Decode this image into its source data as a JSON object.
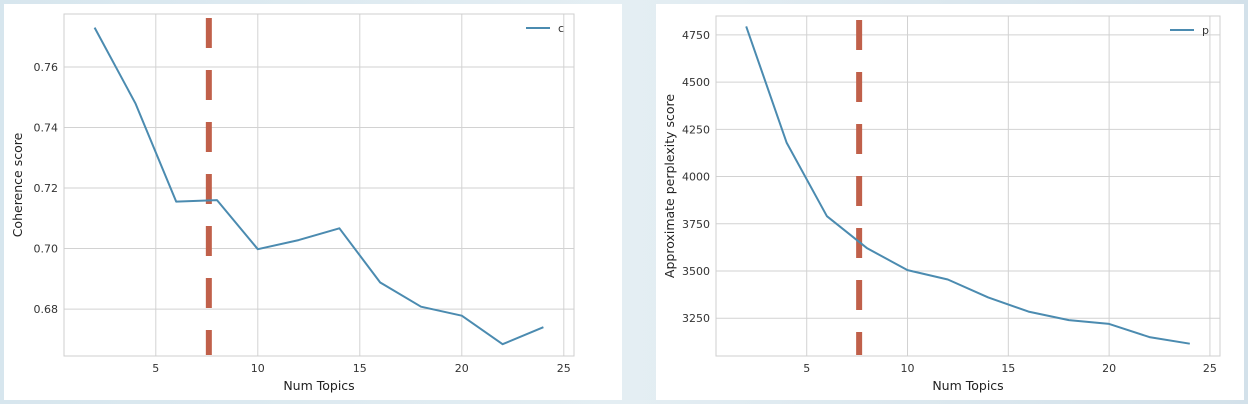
{
  "chart_data": [
    {
      "type": "line",
      "title": "",
      "xlabel": "Num Topics",
      "ylabel": "Coherence score",
      "xlim": [
        0.5,
        25.5
      ],
      "ylim": [
        0.6645,
        0.7775
      ],
      "xticks": [
        5,
        10,
        15,
        20,
        25
      ],
      "yticks": [
        0.68,
        0.7,
        0.72,
        0.74,
        0.76
      ],
      "ytick_labels": [
        "0.68",
        "0.70",
        "0.72",
        "0.74",
        "0.76"
      ],
      "grid": true,
      "legend_position": "top-right",
      "series": [
        {
          "name": "c",
          "color": "#4b8bb0",
          "x": [
            2,
            4,
            6,
            8,
            10,
            12,
            14,
            16,
            18,
            20,
            22,
            24
          ],
          "y": [
            0.773,
            0.748,
            0.7155,
            0.716,
            0.6998,
            0.7028,
            0.7067,
            0.6888,
            0.6808,
            0.6778,
            0.6684,
            0.674
          ]
        }
      ],
      "vline": {
        "x": 7.6,
        "color": "#c0604a",
        "style": "dashed"
      }
    },
    {
      "type": "line",
      "title": "",
      "xlabel": "Num Topics",
      "ylabel": "Approximate perplexity score",
      "xlim": [
        0.5,
        25.5
      ],
      "ylim": [
        3050,
        4850
      ],
      "xticks": [
        5,
        10,
        15,
        20,
        25
      ],
      "yticks": [
        3250,
        3500,
        3750,
        4000,
        4250,
        4500,
        4750
      ],
      "ytick_labels": [
        "3250",
        "3500",
        "3750",
        "4000",
        "4250",
        "4500",
        "4750"
      ],
      "grid": true,
      "legend_position": "top-right",
      "series": [
        {
          "name": "p",
          "color": "#4b8bb0",
          "x": [
            2,
            4,
            6,
            8,
            10,
            12,
            14,
            16,
            18,
            20,
            22,
            24
          ],
          "y": [
            4795,
            4180,
            3790,
            3620,
            3505,
            3455,
            3360,
            3285,
            3240,
            3220,
            3150,
            3115
          ]
        }
      ],
      "vline": {
        "x": 7.6,
        "color": "#c0604a",
        "style": "dashed"
      }
    }
  ]
}
